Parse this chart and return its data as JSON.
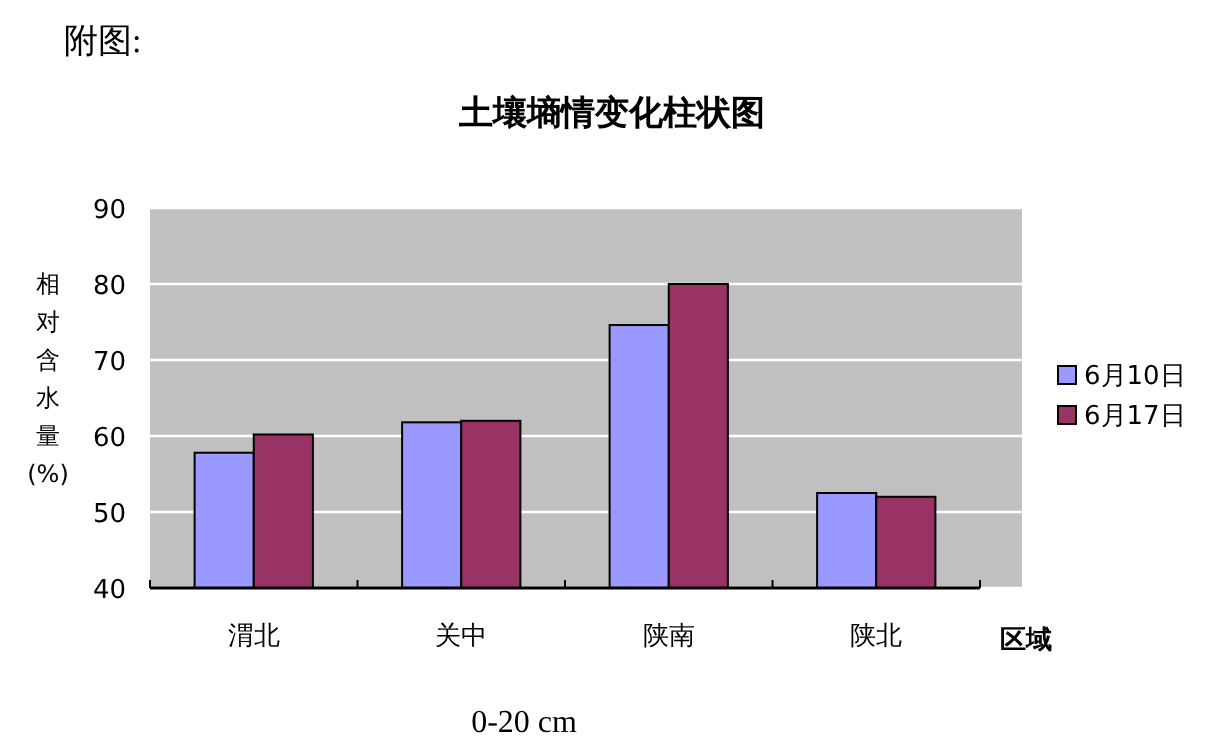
{
  "chart_data": {
    "type": "bar",
    "title": "土壤墒情变化柱状图",
    "xlabel": "区域",
    "ylabel": "相对含水量(%)",
    "annotations": [
      "附图:",
      "0-20 cm"
    ],
    "categories": [
      "渭北",
      "关中",
      "陕南",
      "陕北"
    ],
    "series": [
      {
        "name": "6月10日",
        "color": "#9999ff",
        "values": [
          57.8,
          61.8,
          74.6,
          52.5
        ]
      },
      {
        "name": "6月17日",
        "color": "#993366",
        "values": [
          60.2,
          62.0,
          80.0,
          52.0
        ]
      }
    ],
    "ylim": [
      40,
      90
    ],
    "yticks": [
      40,
      50,
      60,
      70,
      80,
      90
    ],
    "grid": "y",
    "legend": "right"
  }
}
